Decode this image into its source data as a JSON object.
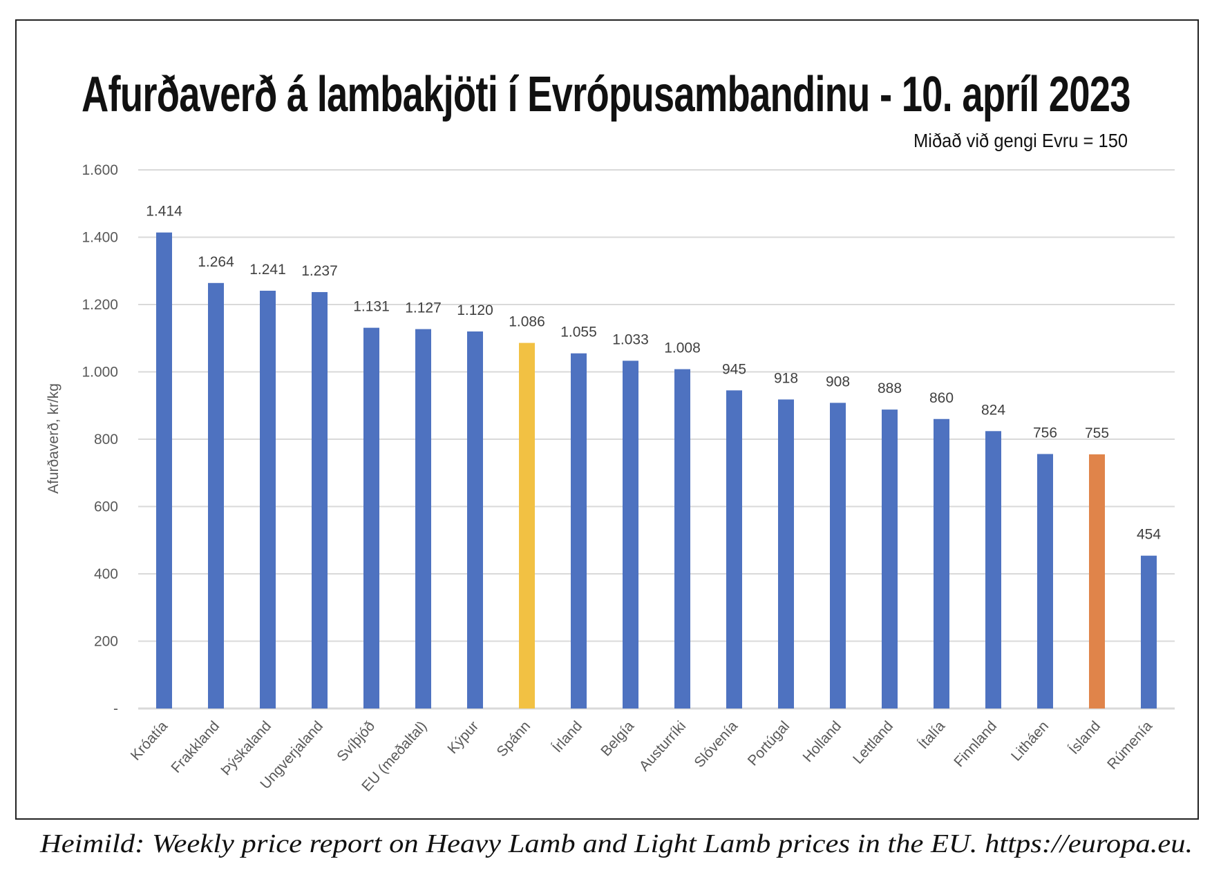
{
  "title": "Afurðaverð á lambakjöti í Evrópusambandinu - 10. apríl 2023",
  "subtitle": "Miðað við gengi Evru = 150",
  "footer": "Heimild: Weekly price report on Heavy Lamb and Light Lamb prices in the EU. https://europa.eu.",
  "chart_data": {
    "type": "bar",
    "title": "Afurðaverð á lambakjöti í Evrópusambandinu - 10. apríl 2023",
    "xlabel": "",
    "ylabel": "Afurðaverð, kr/kg",
    "ylim": [
      0,
      1600
    ],
    "yticks": [
      0,
      200,
      400,
      600,
      800,
      1000,
      1200,
      1400,
      1600
    ],
    "ytick_labels": [
      "-",
      "200",
      "400",
      "600",
      "800",
      "1.000",
      "1.200",
      "1.400",
      "1.600"
    ],
    "grid": true,
    "categories": [
      "Króatía",
      "Frakkland",
      "Þýskaland",
      "Ungverjaland",
      "Svíþjóð",
      "EU (meðaltal)",
      "Kýpur",
      "Spánn",
      "Írland",
      "Belgía",
      "Austurríki",
      "Slóvenía",
      "Portúgal",
      "Holland",
      "Lettland",
      "Ítalía",
      "Finnland",
      "Litháen",
      "Ísland",
      "Rúmenía"
    ],
    "values": [
      1414,
      1264,
      1241,
      1237,
      1131,
      1127,
      1120,
      1086,
      1055,
      1033,
      1008,
      945,
      918,
      908,
      888,
      860,
      824,
      756,
      755,
      454
    ],
    "value_labels": [
      "1.414",
      "1.264",
      "1.241",
      "1.237",
      "1.131",
      "1.127",
      "1.120",
      "1.086",
      "1.055",
      "1.033",
      "1.008",
      "945",
      "918",
      "908",
      "888",
      "860",
      "824",
      "756",
      "755",
      "454"
    ],
    "colors": {
      "default": "#4e72c0",
      "Spánn": "#f2c143",
      "Ísland": "#e0844a"
    },
    "grid_color": "#d9d9d9"
  }
}
